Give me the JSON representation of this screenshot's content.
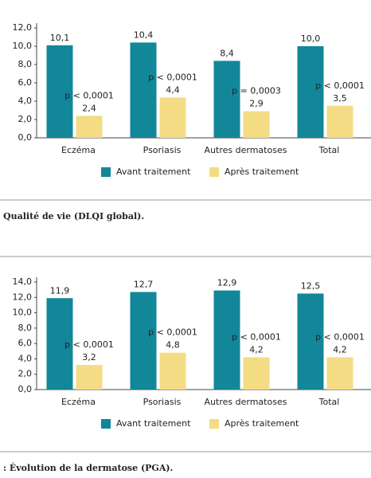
{
  "chart_data": [
    {
      "type": "bar",
      "categories": [
        "Eczéma",
        "Psoriasis",
        "Autres dermatoses",
        "Total"
      ],
      "series": [
        {
          "name": "Avant traitement",
          "color": "#12879a",
          "values": [
            10.1,
            10.4,
            8.4,
            10.0
          ],
          "value_labels": [
            "10,1",
            "10,4",
            "8,4",
            "10,0"
          ]
        },
        {
          "name": "Après traitement",
          "color": "#f3dc84",
          "values": [
            2.4,
            4.4,
            2.9,
            3.5
          ],
          "value_labels": [
            "2,4",
            "4,4",
            "2,9",
            "3,5"
          ]
        }
      ],
      "annotations": [
        "p < 0,0001",
        "p < 0,0001",
        "p = 0,0003",
        "p < 0,0001"
      ],
      "ylim": [
        0,
        12
      ],
      "yticks": [
        {
          "value": 0,
          "label": "0,0"
        },
        {
          "value": 2,
          "label": "2,0"
        },
        {
          "value": 4,
          "label": "4,0"
        },
        {
          "value": 6,
          "label": "6,0"
        },
        {
          "value": 8,
          "label": "8,0"
        },
        {
          "value": 10,
          "label": "10,0"
        },
        {
          "value": 12,
          "label": "12,0"
        }
      ],
      "caption": "Qualité de vie (DLQI global)."
    },
    {
      "type": "bar",
      "categories": [
        "Eczéma",
        "Psoriasis",
        "Autres dermatoses",
        "Total"
      ],
      "series": [
        {
          "name": "Avant traitement",
          "color": "#12879a",
          "values": [
            11.9,
            12.7,
            12.9,
            12.5
          ],
          "value_labels": [
            "11,9",
            "12,7",
            "12,9",
            "12,5"
          ]
        },
        {
          "name": "Après traitement",
          "color": "#f3dc84",
          "values": [
            3.2,
            4.8,
            4.2,
            4.2
          ],
          "value_labels": [
            "3,2",
            "4,8",
            "4,2",
            "4,2"
          ]
        }
      ],
      "annotations": [
        "p < 0,0001",
        "p < 0,0001",
        "p < 0,0001",
        "p < 0,0001"
      ],
      "ylim": [
        0,
        14
      ],
      "yticks": [
        {
          "value": 0,
          "label": "0,0"
        },
        {
          "value": 2,
          "label": "2,0"
        },
        {
          "value": 4,
          "label": "4,0"
        },
        {
          "value": 6,
          "label": "6,0"
        },
        {
          "value": 8,
          "label": "8,0"
        },
        {
          "value": 10,
          "label": "10,0"
        },
        {
          "value": 12,
          "label": "12,0"
        },
        {
          "value": 14,
          "label": "14,0"
        }
      ],
      "caption": ": Évolution de la dermatose (PGA)."
    }
  ]
}
